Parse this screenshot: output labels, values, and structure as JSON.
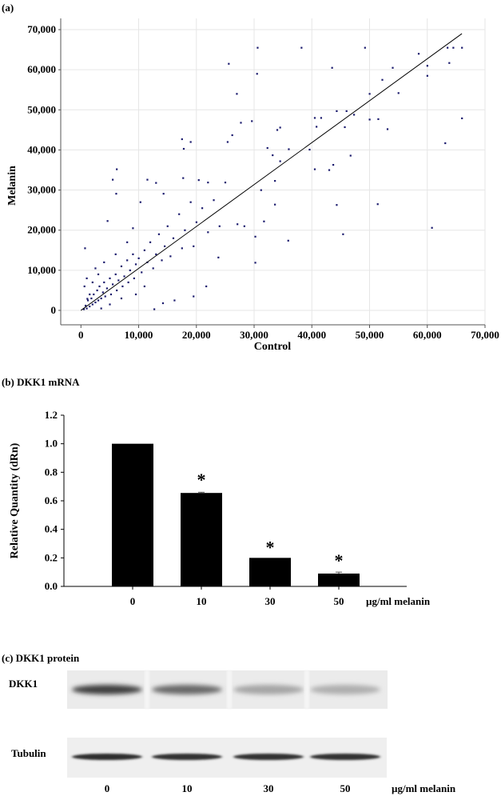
{
  "chart_data": [
    {
      "type": "scatter",
      "panel_label": "(a)",
      "xlabel": "Control",
      "ylabel": "Melanin",
      "xlim": [
        -3500,
        70000
      ],
      "ylim": [
        -3600,
        72800
      ],
      "x_ticks": [
        "0",
        "10,000",
        "20,000",
        "30,000",
        "40,000",
        "50,000",
        "60,000",
        "70,000"
      ],
      "y_ticks": [
        "0",
        "10,000",
        "20,000",
        "30,000",
        "40,000",
        "50,000",
        "60,000",
        "70,000"
      ],
      "grid": true,
      "point_color": "#1c1c6e",
      "fit_line": [
        [
          0,
          0
        ],
        [
          66000,
          69000
        ]
      ],
      "points": [
        [
          30600,
          65500
        ],
        [
          38200,
          65500
        ],
        [
          49200,
          65500
        ],
        [
          63500,
          65500
        ],
        [
          64500,
          65500
        ],
        [
          66000,
          65500
        ],
        [
          25600,
          61500
        ],
        [
          30500,
          59000
        ],
        [
          43500,
          60500
        ],
        [
          54000,
          60500
        ],
        [
          58500,
          64000
        ],
        [
          60000,
          61000
        ],
        [
          60000,
          58500
        ],
        [
          63800,
          61700
        ],
        [
          52200,
          57500
        ],
        [
          27000,
          54000
        ],
        [
          50000,
          54000
        ],
        [
          55000,
          54200
        ],
        [
          44300,
          49700
        ],
        [
          46000,
          49700
        ],
        [
          47300,
          48800
        ],
        [
          50000,
          47600
        ],
        [
          51500,
          47700
        ],
        [
          66000,
          47900
        ],
        [
          40500,
          48000
        ],
        [
          41600,
          48000
        ],
        [
          40800,
          45800
        ],
        [
          45700,
          45700
        ],
        [
          53100,
          45200
        ],
        [
          27700,
          46800
        ],
        [
          29600,
          47200
        ],
        [
          34000,
          45000
        ],
        [
          34500,
          45600
        ],
        [
          26200,
          43700
        ],
        [
          25400,
          42000
        ],
        [
          17500,
          42700
        ],
        [
          19000,
          42000
        ],
        [
          17800,
          40300
        ],
        [
          32300,
          40500
        ],
        [
          36000,
          40200
        ],
        [
          39600,
          40100
        ],
        [
          63100,
          41700
        ],
        [
          46700,
          38600
        ],
        [
          33200,
          38700
        ],
        [
          34500,
          37200
        ],
        [
          40500,
          35200
        ],
        [
          43000,
          35000
        ],
        [
          43700,
          36300
        ],
        [
          6200,
          35200
        ],
        [
          5500,
          32600
        ],
        [
          6100,
          29100
        ],
        [
          11500,
          32600
        ],
        [
          13000,
          31800
        ],
        [
          33600,
          32300
        ],
        [
          31200,
          30000
        ],
        [
          33600,
          26400
        ],
        [
          44300,
          26300
        ],
        [
          51400,
          26500
        ],
        [
          60800,
          20600
        ],
        [
          45400,
          19000
        ],
        [
          35900,
          17400
        ],
        [
          30200,
          18400
        ],
        [
          30200,
          11900
        ],
        [
          31700,
          22200
        ],
        [
          27100,
          21500
        ],
        [
          28300,
          21000
        ],
        [
          23800,
          13200
        ],
        [
          21700,
          6000
        ],
        [
          19500,
          3500
        ],
        [
          12700,
          300
        ],
        [
          14200,
          1800
        ],
        [
          16200,
          2500
        ],
        [
          4600,
          22300
        ],
        [
          700,
          15500
        ],
        [
          10300,
          27000
        ],
        [
          14300,
          29100
        ],
        [
          22000,
          31900
        ],
        [
          20400,
          32500
        ],
        [
          17700,
          33000
        ],
        [
          500,
          300
        ],
        [
          800,
          1200
        ],
        [
          1000,
          500
        ],
        [
          1200,
          2500
        ],
        [
          1500,
          1000
        ],
        [
          1800,
          3000
        ],
        [
          2000,
          1500
        ],
        [
          2200,
          4000
        ],
        [
          2500,
          2000
        ],
        [
          2800,
          5000
        ],
        [
          3000,
          2500
        ],
        [
          3200,
          6000
        ],
        [
          3500,
          3000
        ],
        [
          3800,
          4500
        ],
        [
          4000,
          7000
        ],
        [
          4200,
          3500
        ],
        [
          4500,
          5500
        ],
        [
          5000,
          8000
        ],
        [
          5200,
          4000
        ],
        [
          5500,
          6500
        ],
        [
          6000,
          9000
        ],
        [
          6200,
          5000
        ],
        [
          6500,
          7500
        ],
        [
          7000,
          11000
        ],
        [
          7200,
          6000
        ],
        [
          7500,
          8500
        ],
        [
          8000,
          12500
        ],
        [
          8200,
          7000
        ],
        [
          8500,
          10000
        ],
        [
          9000,
          14000
        ],
        [
          9200,
          8000
        ],
        [
          9500,
          11500
        ],
        [
          10000,
          13000
        ],
        [
          10500,
          9500
        ],
        [
          11000,
          15000
        ],
        [
          11500,
          12000
        ],
        [
          12000,
          17000
        ],
        [
          12500,
          10500
        ],
        [
          13000,
          14000
        ],
        [
          13500,
          19000
        ],
        [
          14000,
          12500
        ],
        [
          14500,
          16000
        ],
        [
          15000,
          21000
        ],
        [
          15500,
          13500
        ],
        [
          16000,
          18000
        ],
        [
          17000,
          24000
        ],
        [
          17500,
          15500
        ],
        [
          18000,
          20000
        ],
        [
          19000,
          27000
        ],
        [
          19500,
          16000
        ],
        [
          20000,
          22000
        ],
        [
          21000,
          25500
        ],
        [
          22000,
          19500
        ],
        [
          23000,
          27500
        ],
        [
          24000,
          21000
        ],
        [
          25000,
          31900
        ],
        [
          3000,
          9000
        ],
        [
          2000,
          7000
        ],
        [
          1000,
          8000
        ],
        [
          4000,
          12000
        ],
        [
          6000,
          14000
        ],
        [
          8000,
          17000
        ],
        [
          9000,
          20500
        ],
        [
          7000,
          3000
        ],
        [
          5000,
          1500
        ],
        [
          9500,
          4000
        ],
        [
          11000,
          6000
        ],
        [
          2500,
          10500
        ],
        [
          1500,
          4000
        ],
        [
          3500,
          500
        ],
        [
          600,
          6000
        ],
        [
          1100,
          2900
        ]
      ]
    },
    {
      "type": "bar",
      "panel_label": "(b) DKK1 mRNA",
      "ylabel": "Relative Quantity (dRn)",
      "xlabel": "µg/ml melanin",
      "categories": [
        "0",
        "10",
        "30",
        "50"
      ],
      "values": [
        1.0,
        0.655,
        0.2,
        0.09
      ],
      "errors": [
        0,
        0.005,
        0,
        0.01
      ],
      "significance": [
        "",
        "*",
        "*",
        "*"
      ],
      "ylim": [
        0,
        1.2
      ],
      "y_ticks": [
        "0.0",
        "0.2",
        "0.4",
        "0.6",
        "0.8",
        "1.0",
        "1.2"
      ],
      "bar_color": "#000000",
      "grid": false
    }
  ],
  "blot": {
    "panel_label": "(c) DKK1 protein",
    "rows": [
      {
        "label": "DKK1",
        "band_intensity": [
          0.85,
          0.65,
          0.35,
          0.3
        ]
      },
      {
        "label": "Tubulin",
        "band_intensity": [
          0.95,
          0.93,
          0.93,
          0.93
        ]
      }
    ],
    "lanes": [
      "0",
      "10",
      "30",
      "50"
    ],
    "unit_label": "µg/ml melanin"
  }
}
